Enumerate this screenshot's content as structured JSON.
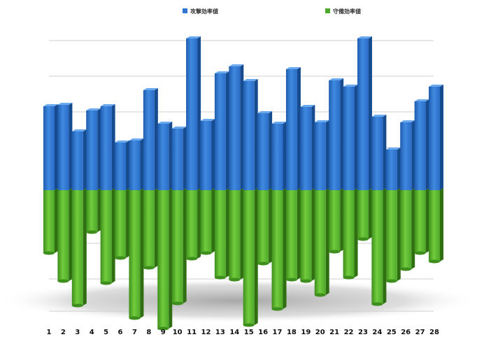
{
  "chart_data": {
    "type": "bar",
    "orientation": "diverging",
    "categories": [
      "1",
      "2",
      "3",
      "4",
      "5",
      "6",
      "7",
      "8",
      "9",
      "10",
      "11",
      "12",
      "13",
      "14",
      "15",
      "16",
      "17",
      "18",
      "19",
      "20",
      "21",
      "22",
      "23",
      "24",
      "25",
      "26",
      "27",
      "28"
    ],
    "series": [
      {
        "name": "攻撃効率値",
        "color": "#2f76d2",
        "values": [
          120,
          122,
          84,
          114,
          120,
          68,
          71,
          143,
          95,
          88,
          217,
          99,
          167,
          177,
          156,
          110,
          95,
          173,
          119,
          97,
          157,
          148,
          217,
          105,
          58,
          97,
          127,
          148
        ]
      },
      {
        "name": "守備効率値",
        "color": "#4ea82a",
        "values": [
          -90,
          -130,
          -165,
          -60,
          -133,
          -97,
          -183,
          -111,
          -198,
          -162,
          -98,
          -90,
          -125,
          -128,
          -193,
          -105,
          -170,
          -128,
          -130,
          -150,
          -88,
          -125,
          -70,
          -163,
          -130,
          -113,
          -90,
          -102
        ]
      }
    ],
    "legend_position": "top",
    "grid": true
  }
}
